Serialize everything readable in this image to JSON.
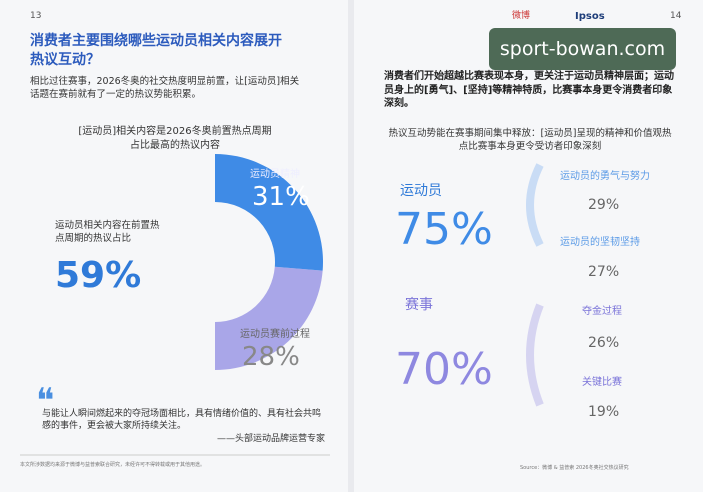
{
  "left_page": {
    "page_number": "13",
    "title": "消费者主要围绕哪些运动员相关内容展开热议互动？",
    "subtitle": "相比过往赛事，2026冬奥的社交热度明显前置，让[运动员]相关话题在赛前就有了一定的热议势能积累。",
    "chart": {
      "title": "[运动员]相关内容是2026冬奥前置热点周期占比最高的热议内容",
      "total_label": "运动员相关内容在前置热点周期的热议占比",
      "total": "59%",
      "categories": [
        "运动员精神",
        "运动员赛前过程"
      ],
      "values": [
        31,
        28
      ],
      "value_labels": [
        "31%",
        "28%"
      ],
      "colors": [
        "#3f8be6",
        "#a9a6e8"
      ]
    },
    "quote": "与能让人瞬间燃起来的夺冠场面相比，具有情绪价值的、具有社会共鸣感的事件，更会被大家所持续关注。",
    "quote_author": "——头部运动品牌运营专家",
    "footnote": "本文所涉数据均来源于微博与益普索联合研究，未经许可不得转载或用于其他用途。"
  },
  "right_page": {
    "page_number": "14",
    "logos": [
      "微博",
      "Ipsos"
    ],
    "watermark": "sport-bowan.com",
    "intro": "消费者们开始超越比赛表现本身，更关注于运动员精神层面；运动员身上的[勇气]、[坚持]等精神特质，比赛事本身更令消费者印象深刻。",
    "chart_title": "热议互动势能在赛事期间集中释放：[运动员]呈现的精神和价值观热点比赛事本身更令受访者印象深刻",
    "groups": [
      {
        "name": "运动员",
        "total": "75%",
        "items": [
          {
            "name": "运动员的勇气与努力",
            "value": "29%"
          },
          {
            "name": "运动员的坚韧坚持",
            "value": "27%"
          }
        ]
      },
      {
        "name": "赛事",
        "total": "70%",
        "items": [
          {
            "name": "夺金过程",
            "value": "26%"
          },
          {
            "name": "关键比赛",
            "value": "19%"
          }
        ]
      }
    ],
    "source": "Source：微博 & 益普索 2026冬奥社交热议研究"
  }
}
